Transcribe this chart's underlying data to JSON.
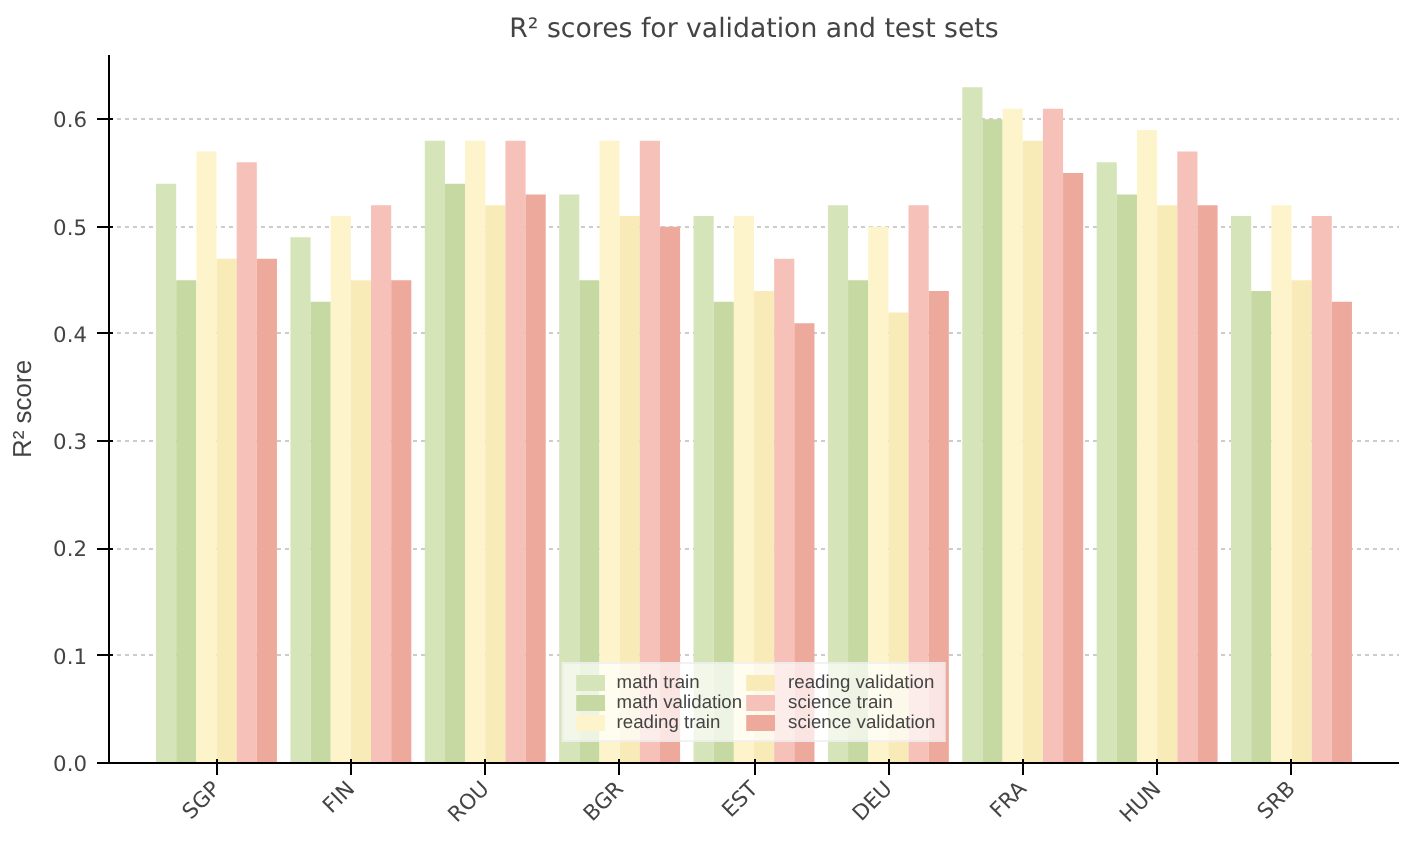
{
  "chart_data": {
    "type": "bar",
    "title": "R² scores for validation and test sets",
    "ylabel": "R² score",
    "categories": [
      "SGP",
      "FIN",
      "ROU",
      "BGR",
      "EST",
      "DEU",
      "FRA",
      "HUN",
      "SRB"
    ],
    "series": [
      {
        "name": "math train",
        "color": "#d6e4b9",
        "values": [
          0.54,
          0.49,
          0.58,
          0.53,
          0.51,
          0.52,
          0.63,
          0.56,
          0.51
        ]
      },
      {
        "name": "math validation",
        "color": "#c6d9a3",
        "values": [
          0.45,
          0.43,
          0.54,
          0.45,
          0.43,
          0.45,
          0.6,
          0.53,
          0.44
        ]
      },
      {
        "name": "reading train",
        "color": "#fdf4cc",
        "values": [
          0.57,
          0.51,
          0.58,
          0.58,
          0.51,
          0.5,
          0.61,
          0.59,
          0.52
        ]
      },
      {
        "name": "reading validation",
        "color": "#f8ebb8",
        "values": [
          0.47,
          0.45,
          0.52,
          0.51,
          0.44,
          0.42,
          0.58,
          0.52,
          0.45
        ]
      },
      {
        "name": "science train",
        "color": "#f5c1b8",
        "values": [
          0.56,
          0.52,
          0.58,
          0.58,
          0.47,
          0.52,
          0.61,
          0.57,
          0.51
        ]
      },
      {
        "name": "science validation",
        "color": "#eea99d",
        "values": [
          0.47,
          0.45,
          0.53,
          0.5,
          0.41,
          0.44,
          0.55,
          0.52,
          0.43
        ]
      }
    ],
    "ylim": [
      0,
      0.66
    ],
    "yticks": [
      {
        "value": 0,
        "label": "0.0"
      },
      0.1,
      0.2,
      0.3,
      0.4,
      0.5,
      0.6
    ],
    "grid": "y",
    "legend": "bottom"
  }
}
